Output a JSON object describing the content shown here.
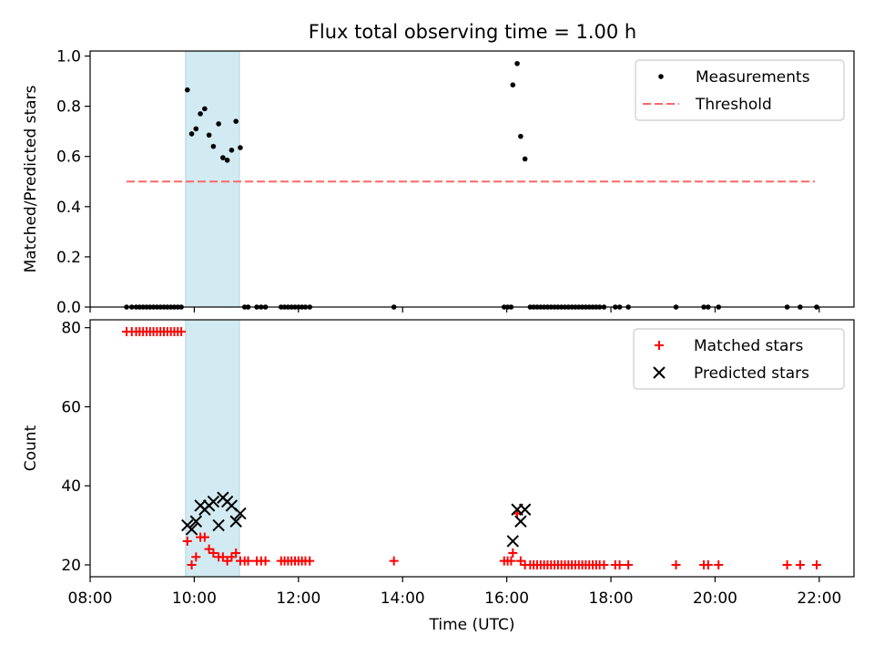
{
  "title": "Flux total observing time = 1.00 h",
  "chart_data": [
    {
      "type": "scatter",
      "panel": "top",
      "ylabel": "Matched/Predicted stars",
      "xlabel": "",
      "xlim": [
        "08:00",
        "22:40"
      ],
      "ylim": [
        0,
        1.02
      ],
      "yticks": [
        0.0,
        0.2,
        0.4,
        0.6,
        0.8,
        1.0
      ],
      "ytick_labels": [
        "0.0",
        "0.2",
        "0.4",
        "0.6",
        "0.8",
        "1.0"
      ],
      "shaded_span": [
        "09:50",
        "10:52"
      ],
      "shade_color": "#add8e6",
      "legend_position": "top-right",
      "legend": [
        {
          "label": "Measurements",
          "marker": "dot",
          "color": "#000000"
        },
        {
          "label": "Threshold",
          "marker": "dashed-line",
          "color": "#ff6666"
        }
      ],
      "threshold": {
        "value": 0.5,
        "x_range": [
          "08:42",
          "21:55"
        ]
      },
      "series": [
        {
          "name": "Measurements",
          "color": "#000000",
          "points": [
            [
              "08:42",
              0
            ],
            [
              "08:48",
              0
            ],
            [
              "08:53",
              0
            ],
            [
              "08:57",
              0
            ],
            [
              "09:01",
              0
            ],
            [
              "09:05",
              0
            ],
            [
              "09:09",
              0
            ],
            [
              "09:13",
              0
            ],
            [
              "09:17",
              0
            ],
            [
              "09:21",
              0
            ],
            [
              "09:25",
              0
            ],
            [
              "09:29",
              0
            ],
            [
              "09:33",
              0
            ],
            [
              "09:37",
              0
            ],
            [
              "09:41",
              0
            ],
            [
              "09:45",
              0
            ],
            [
              "09:52",
              0.865
            ],
            [
              "09:57",
              0.69
            ],
            [
              "10:02",
              0.71
            ],
            [
              "10:07",
              0.77
            ],
            [
              "10:12",
              0.79
            ],
            [
              "10:17",
              0.685
            ],
            [
              "10:22",
              0.64
            ],
            [
              "10:28",
              0.73
            ],
            [
              "10:33",
              0.595
            ],
            [
              "10:38",
              0.585
            ],
            [
              "10:43",
              0.625
            ],
            [
              "10:48",
              0.74
            ],
            [
              "10:53",
              0.635
            ],
            [
              "10:58",
              0
            ],
            [
              "11:02",
              0
            ],
            [
              "11:12",
              0
            ],
            [
              "11:17",
              0
            ],
            [
              "11:22",
              0
            ],
            [
              "11:40",
              0
            ],
            [
              "11:44",
              0
            ],
            [
              "11:48",
              0
            ],
            [
              "11:52",
              0
            ],
            [
              "11:56",
              0
            ],
            [
              "12:00",
              0
            ],
            [
              "12:04",
              0
            ],
            [
              "12:08",
              0
            ],
            [
              "12:13",
              0
            ],
            [
              "13:50",
              0
            ],
            [
              "15:57",
              0
            ],
            [
              "16:01",
              0
            ],
            [
              "16:05",
              0
            ],
            [
              "16:07",
              0.885
            ],
            [
              "16:12",
              0.97
            ],
            [
              "16:16",
              0.68
            ],
            [
              "16:21",
              0.59
            ],
            [
              "16:27",
              0
            ],
            [
              "16:31",
              0
            ],
            [
              "16:35",
              0
            ],
            [
              "16:39",
              0
            ],
            [
              "16:43",
              0
            ],
            [
              "16:47",
              0
            ],
            [
              "16:51",
              0
            ],
            [
              "16:55",
              0
            ],
            [
              "16:59",
              0
            ],
            [
              "17:03",
              0
            ],
            [
              "17:07",
              0
            ],
            [
              "17:11",
              0
            ],
            [
              "17:15",
              0
            ],
            [
              "17:19",
              0
            ],
            [
              "17:23",
              0
            ],
            [
              "17:27",
              0
            ],
            [
              "17:31",
              0
            ],
            [
              "17:35",
              0
            ],
            [
              "17:39",
              0
            ],
            [
              "17:43",
              0
            ],
            [
              "17:47",
              0
            ],
            [
              "17:52",
              0
            ],
            [
              "18:05",
              0
            ],
            [
              "18:10",
              0
            ],
            [
              "18:20",
              0
            ],
            [
              "19:15",
              0
            ],
            [
              "19:47",
              0
            ],
            [
              "19:52",
              0
            ],
            [
              "20:04",
              0
            ],
            [
              "21:23",
              0
            ],
            [
              "21:38",
              0
            ],
            [
              "21:57",
              0
            ]
          ]
        }
      ]
    },
    {
      "type": "scatter",
      "panel": "bottom",
      "ylabel": "Count",
      "xlabel": "Time (UTC)",
      "xlim": [
        "08:00",
        "22:40"
      ],
      "ylim": [
        17,
        82
      ],
      "yticks": [
        20,
        40,
        60,
        80
      ],
      "ytick_labels": [
        "20",
        "40",
        "60",
        "80"
      ],
      "xticks": [
        "08:00",
        "10:00",
        "12:00",
        "14:00",
        "16:00",
        "18:00",
        "20:00",
        "22:00"
      ],
      "shaded_span": [
        "09:50",
        "10:52"
      ],
      "shade_color": "#add8e6",
      "legend_position": "top-right",
      "legend": [
        {
          "label": "Matched stars",
          "marker": "plus",
          "color": "#ff0000"
        },
        {
          "label": "Predicted stars",
          "marker": "x",
          "color": "#000000"
        }
      ],
      "series": [
        {
          "name": "Matched stars",
          "color": "#ff0000",
          "marker": "plus",
          "points": [
            [
              "08:42",
              79
            ],
            [
              "08:48",
              79
            ],
            [
              "08:53",
              79
            ],
            [
              "08:57",
              79
            ],
            [
              "09:01",
              79
            ],
            [
              "09:05",
              79
            ],
            [
              "09:09",
              79
            ],
            [
              "09:13",
              79
            ],
            [
              "09:17",
              79
            ],
            [
              "09:21",
              79
            ],
            [
              "09:25",
              79
            ],
            [
              "09:29",
              79
            ],
            [
              "09:33",
              79
            ],
            [
              "09:37",
              79
            ],
            [
              "09:41",
              79
            ],
            [
              "09:45",
              79
            ],
            [
              "09:52",
              26
            ],
            [
              "09:57",
              20
            ],
            [
              "10:02",
              22
            ],
            [
              "10:07",
              27
            ],
            [
              "10:12",
              27
            ],
            [
              "10:17",
              24
            ],
            [
              "10:22",
              23
            ],
            [
              "10:28",
              22
            ],
            [
              "10:33",
              22
            ],
            [
              "10:38",
              21
            ],
            [
              "10:43",
              22
            ],
            [
              "10:48",
              23
            ],
            [
              "10:53",
              21
            ],
            [
              "10:58",
              21
            ],
            [
              "11:02",
              21
            ],
            [
              "11:12",
              21
            ],
            [
              "11:17",
              21
            ],
            [
              "11:22",
              21
            ],
            [
              "11:40",
              21
            ],
            [
              "11:44",
              21
            ],
            [
              "11:48",
              21
            ],
            [
              "11:52",
              21
            ],
            [
              "11:56",
              21
            ],
            [
              "12:00",
              21
            ],
            [
              "12:04",
              21
            ],
            [
              "12:08",
              21
            ],
            [
              "12:13",
              21
            ],
            [
              "13:50",
              21
            ],
            [
              "15:57",
              21
            ],
            [
              "16:01",
              21
            ],
            [
              "16:05",
              21
            ],
            [
              "16:07",
              23
            ],
            [
              "16:12",
              33
            ],
            [
              "16:16",
              21
            ],
            [
              "16:21",
              20
            ],
            [
              "16:27",
              20
            ],
            [
              "16:31",
              20
            ],
            [
              "16:35",
              20
            ],
            [
              "16:39",
              20
            ],
            [
              "16:43",
              20
            ],
            [
              "16:47",
              20
            ],
            [
              "16:51",
              20
            ],
            [
              "16:55",
              20
            ],
            [
              "16:59",
              20
            ],
            [
              "17:03",
              20
            ],
            [
              "17:07",
              20
            ],
            [
              "17:11",
              20
            ],
            [
              "17:15",
              20
            ],
            [
              "17:19",
              20
            ],
            [
              "17:23",
              20
            ],
            [
              "17:27",
              20
            ],
            [
              "17:31",
              20
            ],
            [
              "17:35",
              20
            ],
            [
              "17:39",
              20
            ],
            [
              "17:43",
              20
            ],
            [
              "17:47",
              20
            ],
            [
              "17:52",
              20
            ],
            [
              "18:05",
              20
            ],
            [
              "18:10",
              20
            ],
            [
              "18:20",
              20
            ],
            [
              "19:15",
              20
            ],
            [
              "19:47",
              20
            ],
            [
              "19:52",
              20
            ],
            [
              "20:04",
              20
            ],
            [
              "21:23",
              20
            ],
            [
              "21:38",
              20
            ],
            [
              "21:57",
              20
            ]
          ]
        },
        {
          "name": "Predicted stars",
          "color": "#000000",
          "marker": "x",
          "points": [
            [
              "09:52",
              30
            ],
            [
              "09:57",
              29
            ],
            [
              "10:02",
              31
            ],
            [
              "10:07",
              35
            ],
            [
              "10:12",
              34
            ],
            [
              "10:17",
              35
            ],
            [
              "10:22",
              36
            ],
            [
              "10:28",
              30
            ],
            [
              "10:33",
              37
            ],
            [
              "10:38",
              36
            ],
            [
              "10:43",
              35
            ],
            [
              "10:48",
              31
            ],
            [
              "10:53",
              33
            ],
            [
              "16:07",
              26
            ],
            [
              "16:12",
              34
            ],
            [
              "16:16",
              31
            ],
            [
              "16:21",
              34
            ]
          ]
        }
      ]
    }
  ]
}
